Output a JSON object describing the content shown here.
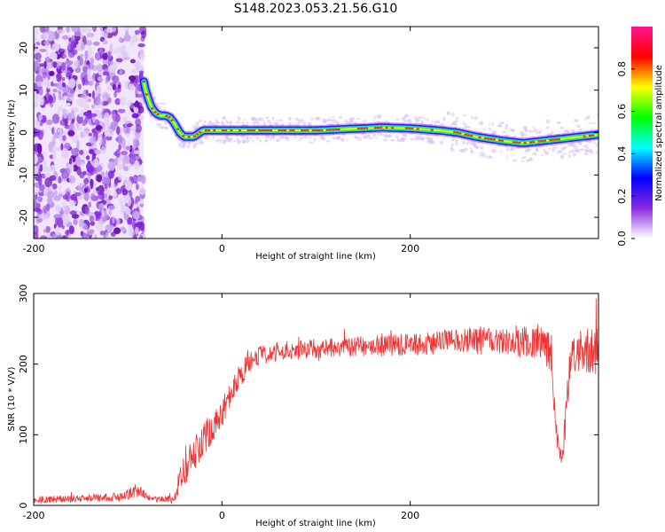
{
  "title": "S148.2023.053.21.56.G10",
  "chart_data": [
    {
      "type": "heatmap",
      "xlabel": "Height of straight line (km)",
      "ylabel": "Frequency (Hz)",
      "xlim": [
        -200,
        400
      ],
      "ylim": [
        -25,
        25
      ],
      "x_ticks": [
        -200,
        0,
        200
      ],
      "y_ticks": [
        -20,
        -10,
        0,
        10,
        20
      ],
      "grid": false,
      "noise_region_x": [
        -200,
        -83
      ],
      "ridge": {
        "x": [
          -83,
          -80,
          -75,
          -70,
          -65,
          -60,
          -55,
          -50,
          -45,
          -40,
          -30,
          -20,
          0,
          20,
          50,
          100,
          150,
          170,
          200,
          230,
          250,
          270,
          300,
          320,
          340,
          360,
          380,
          400
        ],
        "y": [
          12,
          9,
          6,
          4.5,
          4,
          4,
          3.5,
          2,
          0,
          -1,
          -1,
          0.5,
          0.5,
          0.5,
          0.5,
          0.5,
          1,
          1.2,
          1,
          0.5,
          0,
          -1,
          -2,
          -2.5,
          -2,
          -1.5,
          -1,
          -0.5
        ]
      },
      "colorbar": {
        "label": "Normalized spectral amplitude",
        "ticks": [
          0.0,
          0.2,
          0.4,
          0.6,
          0.8
        ],
        "range": [
          0,
          1
        ],
        "colors": [
          "#ffffff",
          "#8a2be2",
          "#0000ff",
          "#00ffff",
          "#00ff00",
          "#ffff00",
          "#ff0000",
          "#ff1493"
        ]
      }
    },
    {
      "type": "line",
      "xlabel": "Height of straight line (km)",
      "ylabel": "SNR (10 * V/V)",
      "xlim": [
        -200,
        400
      ],
      "ylim": [
        0,
        300
      ],
      "x_ticks": [
        -200,
        0,
        200
      ],
      "y_ticks": [
        0,
        100,
        200,
        300
      ],
      "grid": false,
      "color": "#ee3333",
      "series": [
        {
          "x": [
            -200,
            -150,
            -110,
            -100,
            -92,
            -85,
            -75,
            -60,
            -52,
            -48,
            -44,
            -40,
            -35,
            -30,
            -20,
            -10,
            0,
            10,
            20,
            30,
            40,
            60,
            100,
            150,
            200,
            250,
            300,
            340,
            350,
            355,
            360,
            362,
            365,
            370,
            380,
            400
          ],
          "y": [
            8,
            10,
            12,
            16,
            22,
            18,
            10,
            8,
            8,
            20,
            45,
            50,
            75,
            70,
            95,
            110,
            130,
            160,
            185,
            205,
            212,
            218,
            222,
            225,
            228,
            232,
            235,
            230,
            215,
            100,
            70,
            70,
            120,
            210,
            215,
            220
          ],
          "spread": [
            5,
            5,
            6,
            8,
            10,
            8,
            5,
            5,
            6,
            10,
            28,
            30,
            30,
            28,
            25,
            22,
            20,
            20,
            18,
            16,
            14,
            14,
            14,
            15,
            16,
            18,
            22,
            28,
            30,
            20,
            15,
            15,
            25,
            30,
            32,
            35
          ]
        }
      ]
    }
  ]
}
